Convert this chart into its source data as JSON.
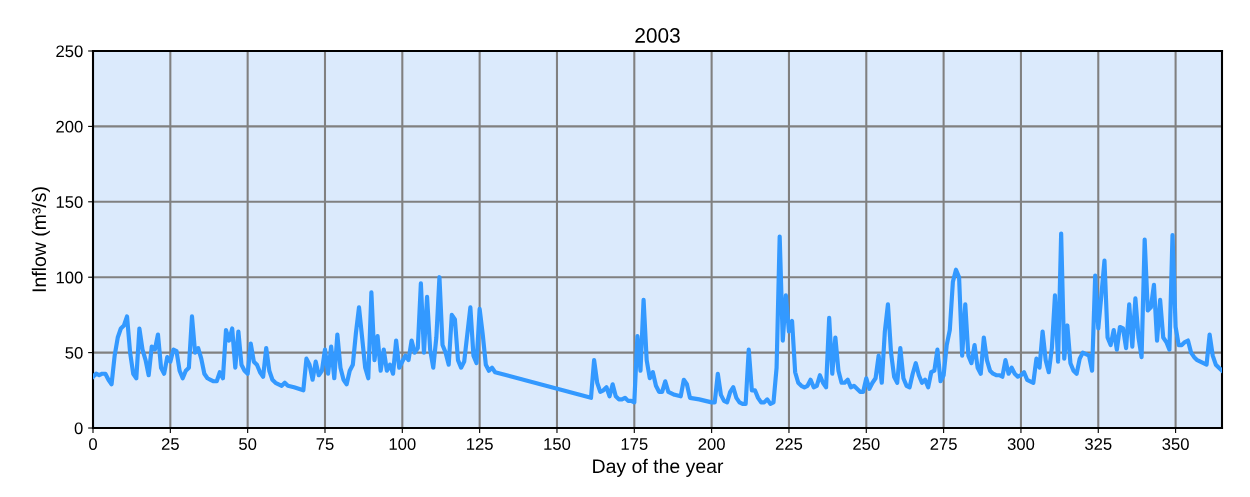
{
  "chart_data": {
    "type": "line",
    "title": "2003",
    "xlabel": "Day of the year",
    "ylabel": "Inflow (m³/s)",
    "xlim": [
      0,
      365
    ],
    "ylim": [
      0,
      250
    ],
    "xticks": [
      0,
      25,
      50,
      75,
      100,
      125,
      150,
      175,
      200,
      225,
      250,
      275,
      300,
      325,
      350
    ],
    "yticks": [
      0,
      50,
      100,
      150,
      200,
      250
    ],
    "grid": true,
    "marker": "none",
    "line_style": "solid",
    "series": [
      {
        "color": "#3399ff",
        "x": [
          0,
          1,
          2,
          3,
          4,
          5,
          6,
          7,
          8,
          9,
          10,
          11,
          12,
          13,
          14,
          15,
          16,
          17,
          18,
          19,
          20,
          21,
          22,
          23,
          24,
          25,
          26,
          27,
          28,
          29,
          30,
          31,
          32,
          33,
          34,
          35,
          36,
          37,
          38,
          39,
          40,
          41,
          42,
          43,
          44,
          45,
          46,
          47,
          48,
          49,
          50,
          51,
          52,
          53,
          54,
          55,
          56,
          57,
          58,
          59,
          60,
          61,
          62,
          63,
          65,
          68,
          69,
          70,
          71,
          72,
          73,
          74,
          75,
          76,
          77,
          78,
          79,
          80,
          81,
          82,
          83,
          84,
          85,
          86,
          87,
          88,
          89,
          90,
          91,
          92,
          93,
          94,
          95,
          96,
          97,
          98,
          99,
          100,
          101,
          102,
          103,
          104,
          105,
          106,
          107,
          108,
          109,
          110,
          111,
          112,
          113,
          114,
          115,
          116,
          117,
          118,
          119,
          120,
          121,
          122,
          123,
          124,
          125,
          126,
          127,
          128,
          129,
          130,
          161,
          162,
          163,
          164,
          165,
          166,
          167,
          168,
          169,
          170,
          171,
          172,
          173,
          174,
          175,
          176,
          177,
          178,
          179,
          180,
          181,
          182,
          183,
          184,
          185,
          186,
          187,
          188,
          190,
          191,
          192,
          193,
          196,
          200,
          201,
          202,
          203,
          204,
          205,
          206,
          207,
          208,
          209,
          210,
          211,
          212,
          213,
          214,
          215,
          216,
          217,
          218,
          219,
          220,
          221,
          222,
          223,
          224,
          225,
          226,
          227,
          228,
          229,
          230,
          231,
          232,
          233,
          234,
          235,
          236,
          237,
          238,
          239,
          240,
          241,
          242,
          243,
          244,
          245,
          246,
          247,
          248,
          249,
          250,
          251,
          252,
          253,
          254,
          255,
          256,
          257,
          258,
          259,
          260,
          261,
          262,
          263,
          264,
          265,
          266,
          267,
          268,
          269,
          270,
          271,
          272,
          273,
          274,
          275,
          276,
          277,
          278,
          279,
          280,
          281,
          282,
          283,
          284,
          285,
          286,
          287,
          288,
          289,
          290,
          291,
          292,
          293,
          294,
          295,
          296,
          297,
          298,
          299,
          300,
          301,
          302,
          303,
          304,
          305,
          306,
          307,
          308,
          309,
          310,
          311,
          312,
          313,
          314,
          315,
          316,
          317,
          318,
          319,
          320,
          321,
          322,
          323,
          324,
          325,
          326,
          327,
          328,
          329,
          330,
          331,
          332,
          333,
          334,
          335,
          336,
          337,
          338,
          339,
          340,
          341,
          342,
          343,
          344,
          345,
          346,
          347,
          348,
          349,
          350,
          351,
          352,
          353,
          354,
          355,
          356,
          357,
          358,
          359,
          360,
          361,
          362,
          363,
          364,
          365
        ],
        "values": [
          34,
          36,
          35,
          36,
          36,
          32,
          29,
          48,
          60,
          66,
          68,
          74,
          50,
          36,
          33,
          66,
          52,
          45,
          35,
          54,
          52,
          62,
          40,
          36,
          47,
          44,
          52,
          51,
          38,
          33,
          38,
          40,
          74,
          50,
          53,
          46,
          36,
          33,
          32,
          31,
          31,
          37,
          33,
          65,
          58,
          66,
          40,
          64,
          42,
          38,
          36,
          56,
          44,
          42,
          37,
          34,
          53,
          38,
          32,
          30,
          29,
          28,
          30,
          28,
          27,
          25,
          46,
          42,
          32,
          44,
          35,
          38,
          52,
          36,
          54,
          33,
          62,
          40,
          32,
          29,
          38,
          42,
          63,
          80,
          60,
          40,
          33,
          90,
          45,
          61,
          38,
          52,
          38,
          42,
          36,
          58,
          40,
          44,
          48,
          45,
          58,
          50,
          53,
          96,
          50,
          87,
          52,
          40,
          60,
          100,
          55,
          50,
          42,
          75,
          72,
          45,
          40,
          44,
          62,
          80,
          48,
          43,
          79,
          62,
          42,
          38,
          40,
          37,
          20,
          45,
          30,
          24,
          25,
          27,
          21,
          29,
          21,
          19,
          19,
          20,
          18,
          18,
          17,
          61,
          38,
          85,
          45,
          33,
          37,
          28,
          24,
          24,
          31,
          24,
          23,
          22,
          21,
          32,
          29,
          20,
          19,
          17,
          17,
          36,
          22,
          18,
          17,
          24,
          27,
          20,
          17,
          16,
          16,
          52,
          25,
          25,
          20,
          17,
          17,
          19,
          16,
          17,
          40,
          127,
          58,
          88,
          64,
          71,
          37,
          30,
          28,
          27,
          28,
          32,
          27,
          28,
          35,
          30,
          27,
          73,
          36,
          60,
          38,
          30,
          30,
          32,
          27,
          28,
          26,
          24,
          24,
          33,
          26,
          30,
          33,
          48,
          30,
          64,
          82,
          50,
          34,
          30,
          53,
          33,
          28,
          27,
          36,
          43,
          35,
          30,
          32,
          27,
          37,
          38,
          52,
          31,
          35,
          55,
          65,
          97,
          105,
          100,
          48,
          82,
          48,
          43,
          55,
          40,
          36,
          60,
          45,
          38,
          36,
          35,
          35,
          34,
          45,
          36,
          40,
          36,
          34,
          35,
          37,
          32,
          31,
          30,
          46,
          40,
          64,
          45,
          37,
          53,
          88,
          44,
          129,
          46,
          68,
          43,
          38,
          36,
          46,
          50,
          49,
          48,
          38,
          101,
          66,
          88,
          111,
          60,
          55,
          65,
          52,
          67,
          66,
          53,
          82,
          54,
          86,
          60,
          47,
          125,
          78,
          80,
          95,
          58,
          85,
          60,
          57,
          52,
          128,
          67,
          55,
          55,
          57,
          58,
          50,
          47,
          45,
          44,
          43,
          42,
          62,
          48,
          42,
          40,
          38
        ]
      }
    ]
  }
}
